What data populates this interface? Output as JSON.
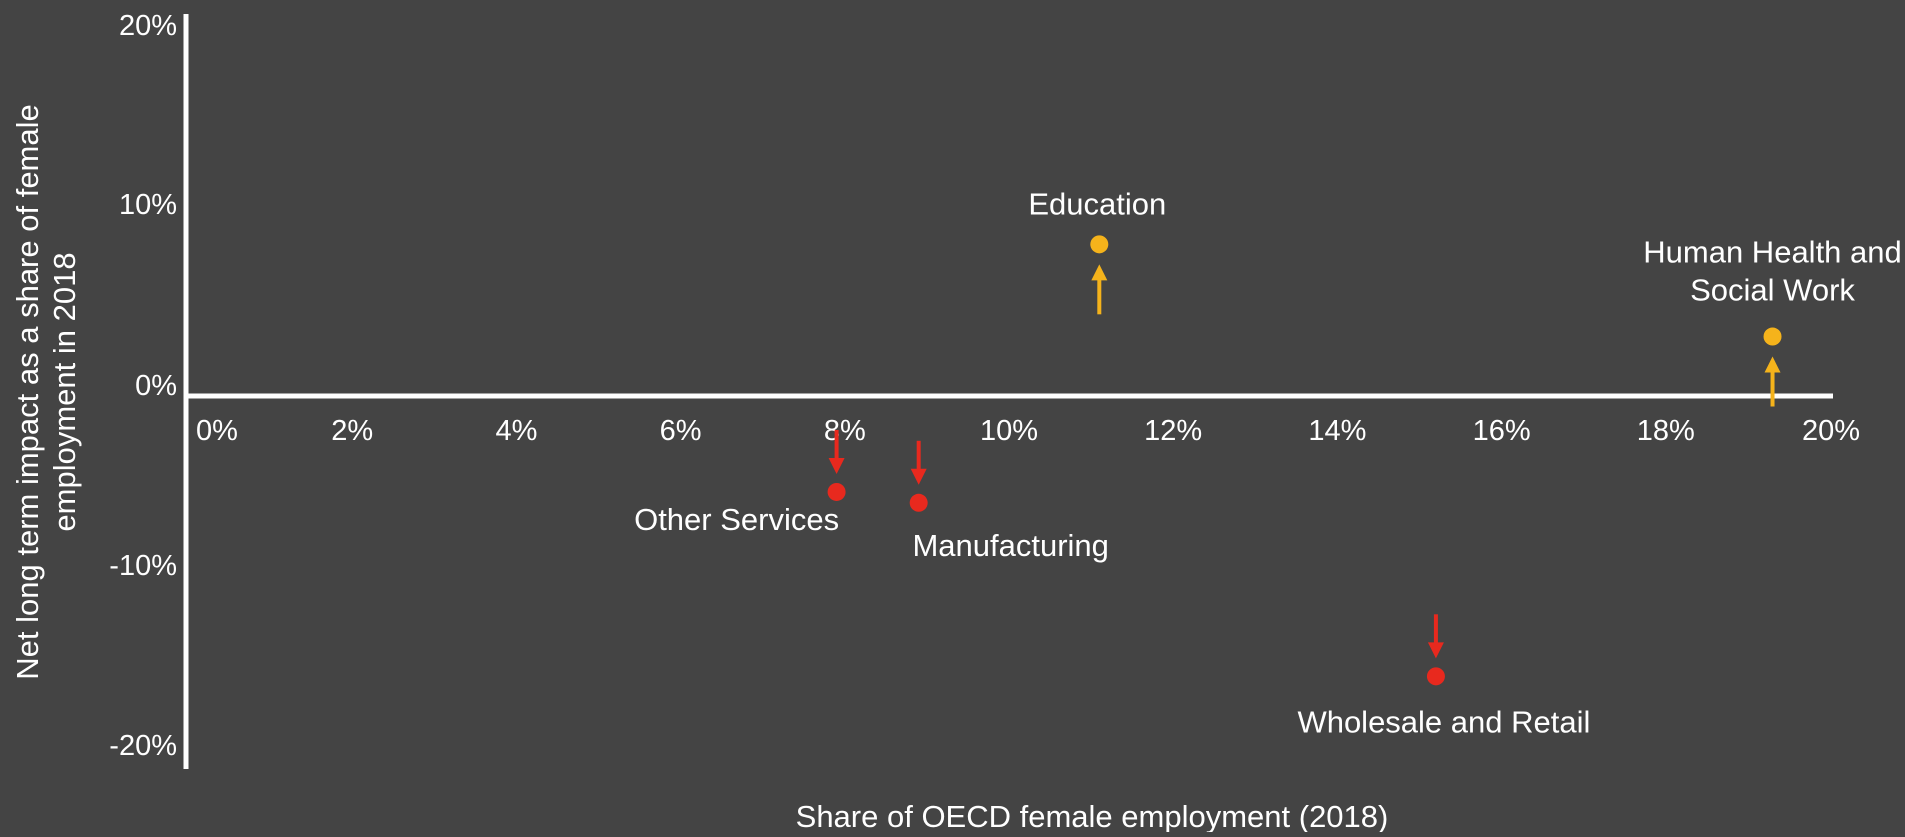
{
  "chart_data": {
    "type": "scatter",
    "title": "",
    "xlabel": "Share of OECD female employment (2018)",
    "ylabel_lines": [
      "Net long term impact as a share of female",
      "employment in 2018"
    ],
    "xlim": [
      0,
      20
    ],
    "ylim": [
      -20,
      20
    ],
    "x_ticks": [
      "0%",
      "2%",
      "4%",
      "6%",
      "8%",
      "10%",
      "12%",
      "14%",
      "16%",
      "18%",
      "20%"
    ],
    "y_ticks": [
      "20%",
      "10%",
      "0%",
      "-10%",
      "-20%"
    ],
    "grid": false,
    "legend": "none",
    "colors": {
      "background": "#444444",
      "axis": "#ffffff",
      "text": "#ffffff",
      "positive": "#f5b31b",
      "negative": "#e8291e"
    },
    "points": [
      {
        "label_lines": [
          "Other Services"
        ],
        "x": 7.9,
        "y": -6.0,
        "direction": "down"
      },
      {
        "label_lines": [
          "Manufacturing"
        ],
        "x": 8.9,
        "y": -6.6,
        "direction": "down"
      },
      {
        "label_lines": [
          "Education"
        ],
        "x": 11.1,
        "y": 7.7,
        "direction": "up"
      },
      {
        "label_lines": [
          "Wholesale and Retail"
        ],
        "x": 15.2,
        "y": -16.2,
        "direction": "down"
      },
      {
        "label_lines": [
          "Human Health and",
          "Social Work"
        ],
        "x": 19.3,
        "y": 2.6,
        "direction": "up"
      }
    ]
  }
}
